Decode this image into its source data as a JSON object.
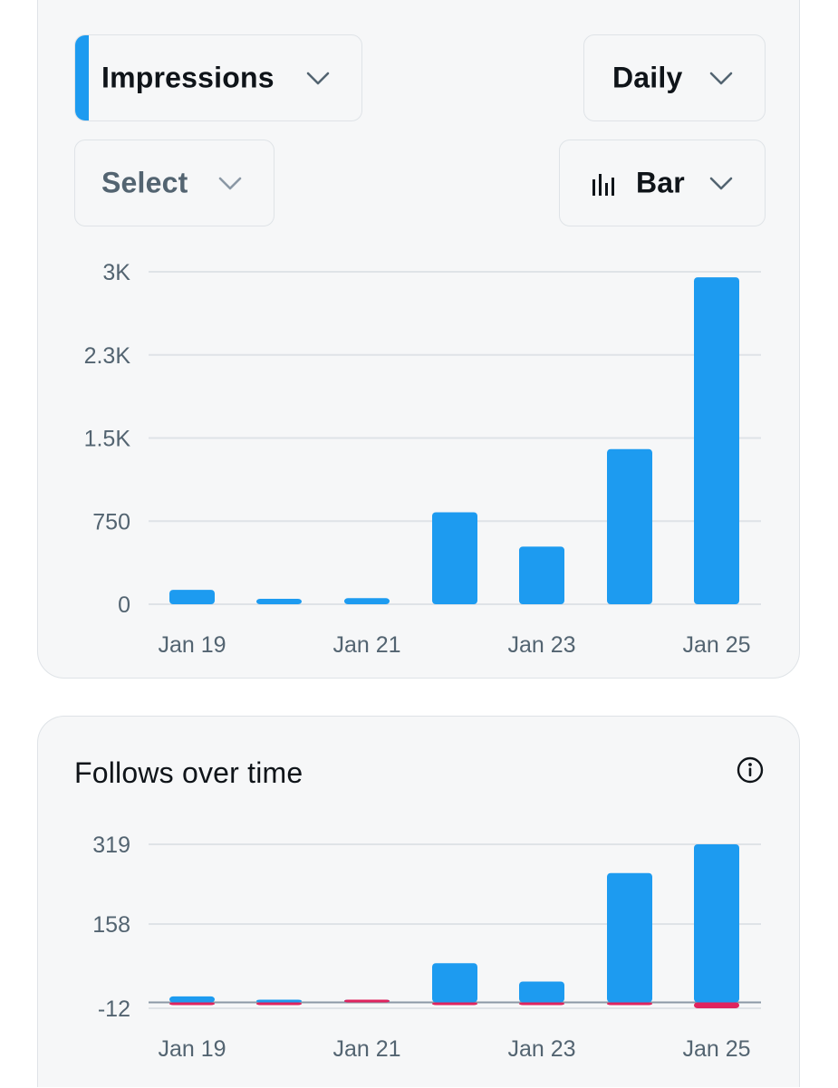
{
  "impressions_card": {
    "metric_label": "Impressions",
    "period_label": "Daily",
    "compare_label": "Select",
    "chart_type_label": "Bar"
  },
  "follows_card": {
    "title": "Follows over time"
  },
  "colors": {
    "accent": "#1d9bf0",
    "negative": "#e0245e",
    "grid": "#dfe3e7",
    "muted_text": "#536471"
  },
  "chart_data": [
    {
      "type": "bar",
      "title": "",
      "categories": [
        "Jan 19",
        "Jan 20",
        "Jan 21",
        "Jan 22",
        "Jan 23",
        "Jan 24",
        "Jan 25"
      ],
      "x_tick_labels": [
        "Jan 19",
        "Jan 21",
        "Jan 23",
        "Jan 25"
      ],
      "series": [
        {
          "values": [
            130,
            40,
            55,
            830,
            520,
            1400,
            2950
          ]
        }
      ],
      "y_ticks": [
        "0",
        "750",
        "1.5K",
        "2.3K",
        "3K"
      ],
      "y_tick_values": [
        0,
        750,
        1500,
        2250,
        3000
      ],
      "ylim": [
        0,
        3000
      ],
      "grid": true,
      "xlabel": "",
      "ylabel": ""
    },
    {
      "type": "bar",
      "title": "Follows over time",
      "categories": [
        "Jan 19",
        "Jan 20",
        "Jan 21",
        "Jan 22",
        "Jan 23",
        "Jan 24",
        "Jan 25"
      ],
      "x_tick_labels": [
        "Jan 19",
        "Jan 21",
        "Jan 23",
        "Jan 25"
      ],
      "series": [
        {
          "values": [
            12,
            4,
            3,
            79,
            42,
            261,
            319
          ]
        },
        {
          "values": [
            -2,
            -2,
            0,
            -2,
            -1,
            -3,
            -12
          ]
        }
      ],
      "y_ticks": [
        "-12",
        "158",
        "319"
      ],
      "y_tick_values": [
        -12,
        158,
        319
      ],
      "ylim": [
        -12,
        319
      ],
      "grid": true,
      "xlabel": "",
      "ylabel": ""
    }
  ]
}
